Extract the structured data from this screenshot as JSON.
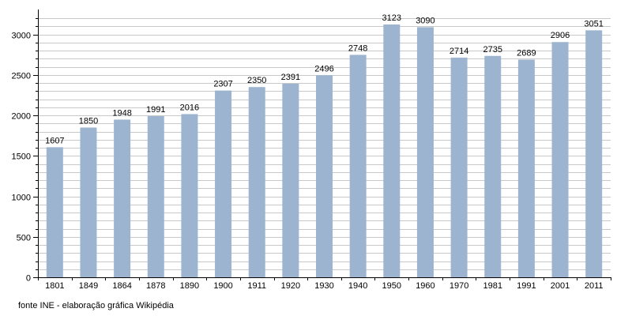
{
  "chart_data": {
    "type": "bar",
    "categories": [
      "1801",
      "1849",
      "1864",
      "1878",
      "1890",
      "1900",
      "1911",
      "1920",
      "1930",
      "1940",
      "1950",
      "1960",
      "1970",
      "1981",
      "1991",
      "2001",
      "2011"
    ],
    "values": [
      1607,
      1850,
      1948,
      1991,
      2016,
      2307,
      2350,
      2391,
      2496,
      2748,
      3123,
      3090,
      2714,
      2735,
      2689,
      2906,
      3051
    ],
    "title": "",
    "xlabel": "",
    "ylabel": "",
    "ylim": [
      0,
      3250
    ],
    "yticks": [
      0,
      500,
      1000,
      1500,
      2000,
      2500,
      3000
    ],
    "grid": true,
    "legend": "none",
    "bar_color": "#9cb4cf",
    "grid_color": "#c8c8c8"
  },
  "footer": {
    "source": "fonte INE - elaboração gráfica Wikipédia"
  }
}
